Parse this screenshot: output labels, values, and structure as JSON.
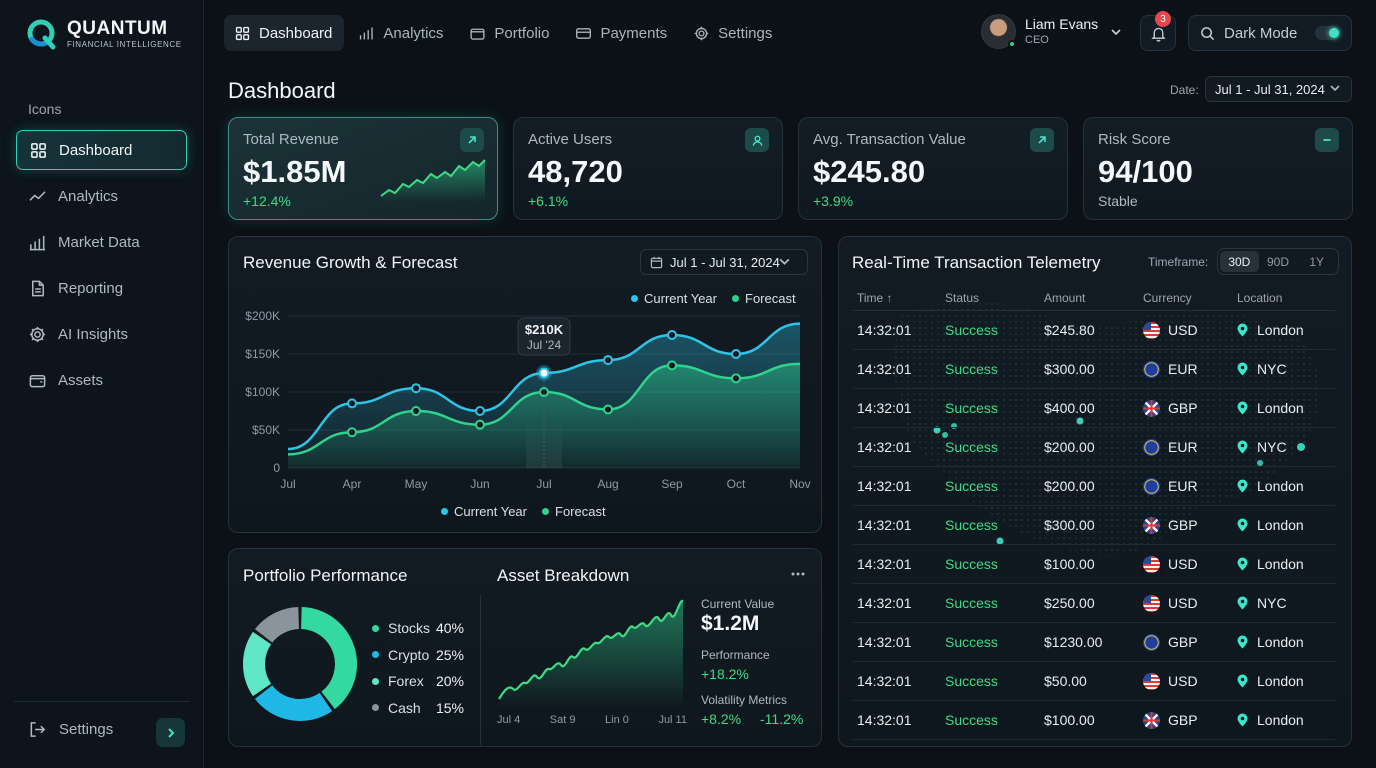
{
  "brand": {
    "name": "QUANTUM",
    "tagline": "FINANCIAL INTELLIGENCE",
    "accent": "#2fd0b6"
  },
  "sidebar": {
    "section_label": "Icons",
    "items": [
      {
        "label": "Dashboard",
        "icon": "grid-icon",
        "active": true
      },
      {
        "label": "Analytics",
        "icon": "trend-line-icon"
      },
      {
        "label": "Market Data",
        "icon": "bar-chart-icon"
      },
      {
        "label": "Reporting",
        "icon": "document-icon"
      },
      {
        "label": "AI Insights",
        "icon": "gear-icon"
      },
      {
        "label": "Assets",
        "icon": "wallet-icon"
      }
    ],
    "footer_label": "Settings"
  },
  "topnav": {
    "tabs": [
      {
        "label": "Dashboard",
        "icon": "grid-icon",
        "active": true
      },
      {
        "label": "Analytics",
        "icon": "bar-chart-icon"
      },
      {
        "label": "Portfolio",
        "icon": "wallet-icon"
      },
      {
        "label": "Payments",
        "icon": "card-icon"
      },
      {
        "label": "Settings",
        "icon": "gear-icon"
      }
    ]
  },
  "user": {
    "name": "Liam Evans",
    "role": "CEO"
  },
  "notifications": {
    "count": "3"
  },
  "theme": {
    "label": "Dark Mode",
    "enabled": true
  },
  "page": {
    "title": "Dashboard",
    "date_label": "Date:",
    "date_range": "Jul 1 - Jul 31, 2024"
  },
  "kpis": [
    {
      "label": "Total Revenue",
      "value": "$1.85M",
      "delta": "+12.4%",
      "icon": "arrow-up-right-icon"
    },
    {
      "label": "Active Users",
      "value": "48,720",
      "delta": "+6.1%",
      "icon": "user-icon"
    },
    {
      "label": "Avg. Transaction Value",
      "value": "$245.80",
      "delta": "+3.9%",
      "icon": "arrow-up-right-icon"
    },
    {
      "label": "Risk Score",
      "value": "94/100",
      "delta": "Stable",
      "icon": "minus-icon"
    }
  ],
  "revenue_chart": {
    "title": "Revenue Growth & Forecast",
    "date_range": "Jul 1 - Jul 31, 2024",
    "tooltip": {
      "value": "$210K",
      "label": "Jul '24"
    }
  },
  "chart_data": {
    "type": "area",
    "title": "Revenue Growth & Forecast",
    "x": [
      "Jul",
      "Apr",
      "May",
      "Jun",
      "Jul",
      "Aug",
      "Sep",
      "Oct",
      "Nov"
    ],
    "y_ticks": [
      "$200K",
      "$150K",
      "$100K",
      "$50K",
      "0"
    ],
    "ylim": [
      0,
      200000
    ],
    "series": [
      {
        "name": "Current Year",
        "color": "#2ec4e6",
        "values": [
          25000,
          85000,
          105000,
          75000,
          125000,
          142000,
          175000,
          150000,
          190000
        ]
      },
      {
        "name": "Forecast",
        "color": "#2fd38f",
        "values": [
          18000,
          47000,
          75000,
          57000,
          100000,
          77000,
          135000,
          118000,
          137000
        ]
      }
    ],
    "legend": "top-right"
  },
  "telemetry": {
    "title": "Real-Time Transaction Telemetry",
    "timeframe_label": "Timeframe:",
    "timeframes": [
      {
        "label": "30D",
        "active": true
      },
      {
        "label": "90D"
      },
      {
        "label": "1Y"
      }
    ],
    "columns": [
      "Time ↑",
      "Status",
      "Amount",
      "Currency",
      "Location"
    ],
    "rows": [
      {
        "time": "14:32:01",
        "status": "Success",
        "amount": "$245.80",
        "currency": "USD",
        "flag": "usd",
        "location": "London"
      },
      {
        "time": "14:32:01",
        "status": "Success",
        "amount": "$300.00",
        "currency": "EUR",
        "flag": "eur",
        "location": "NYC"
      },
      {
        "time": "14:32:01",
        "status": "Success",
        "amount": "$400.00",
        "currency": "GBP",
        "flag": "gbp",
        "location": "London"
      },
      {
        "time": "14:32:01",
        "status": "Success",
        "amount": "$200.00",
        "currency": "EUR",
        "flag": "eur",
        "location": "NYC"
      },
      {
        "time": "14:32:01",
        "status": "Success",
        "amount": "$200.00",
        "currency": "EUR",
        "flag": "eur",
        "location": "London"
      },
      {
        "time": "14:32:01",
        "status": "Success",
        "amount": "$300.00",
        "currency": "GBP",
        "flag": "gbp",
        "location": "London"
      },
      {
        "time": "14:32:01",
        "status": "Success",
        "amount": "$100.00",
        "currency": "USD",
        "flag": "usd",
        "location": "London"
      },
      {
        "time": "14:32:01",
        "status": "Success",
        "amount": "$250.00",
        "currency": "USD",
        "flag": "usd",
        "location": "NYC"
      },
      {
        "time": "14:32:01",
        "status": "Success",
        "amount": "$1230.00",
        "currency": "GBP",
        "flag": "eur",
        "location": "London"
      },
      {
        "time": "14:32:01",
        "status": "Success",
        "amount": "$50.00",
        "currency": "USD",
        "flag": "usd",
        "location": "London"
      },
      {
        "time": "14:32:01",
        "status": "Success",
        "amount": "$100.00",
        "currency": "GBP",
        "flag": "gbp",
        "location": "London"
      }
    ]
  },
  "portfolio": {
    "title": "Portfolio Performance",
    "allocation": [
      {
        "label": "Stocks",
        "pct": "40%",
        "value": 40,
        "color": "#33d9a0"
      },
      {
        "label": "Crypto",
        "pct": "25%",
        "value": 25,
        "color": "#1fb8e6"
      },
      {
        "label": "Forex",
        "pct": "20%",
        "value": 20,
        "color": "#5fe6c6"
      },
      {
        "label": "Cash",
        "pct": "15%",
        "value": 15,
        "color": "#8a949c"
      }
    ]
  },
  "asset_breakdown": {
    "title": "Asset Breakdown",
    "menu_icon": "more-horizontal-icon",
    "x_labels": [
      "Jul 4",
      "Sat 9",
      "Lin 0",
      "Jul 11"
    ],
    "current_value_label": "Current Value",
    "current_value": "$1.2M",
    "performance_label": "Performance",
    "performance": "+18.2%",
    "volatility_label": "Volatility Metrics",
    "volatility_up": "+8.2%",
    "volatility_down": "-11.2%"
  }
}
